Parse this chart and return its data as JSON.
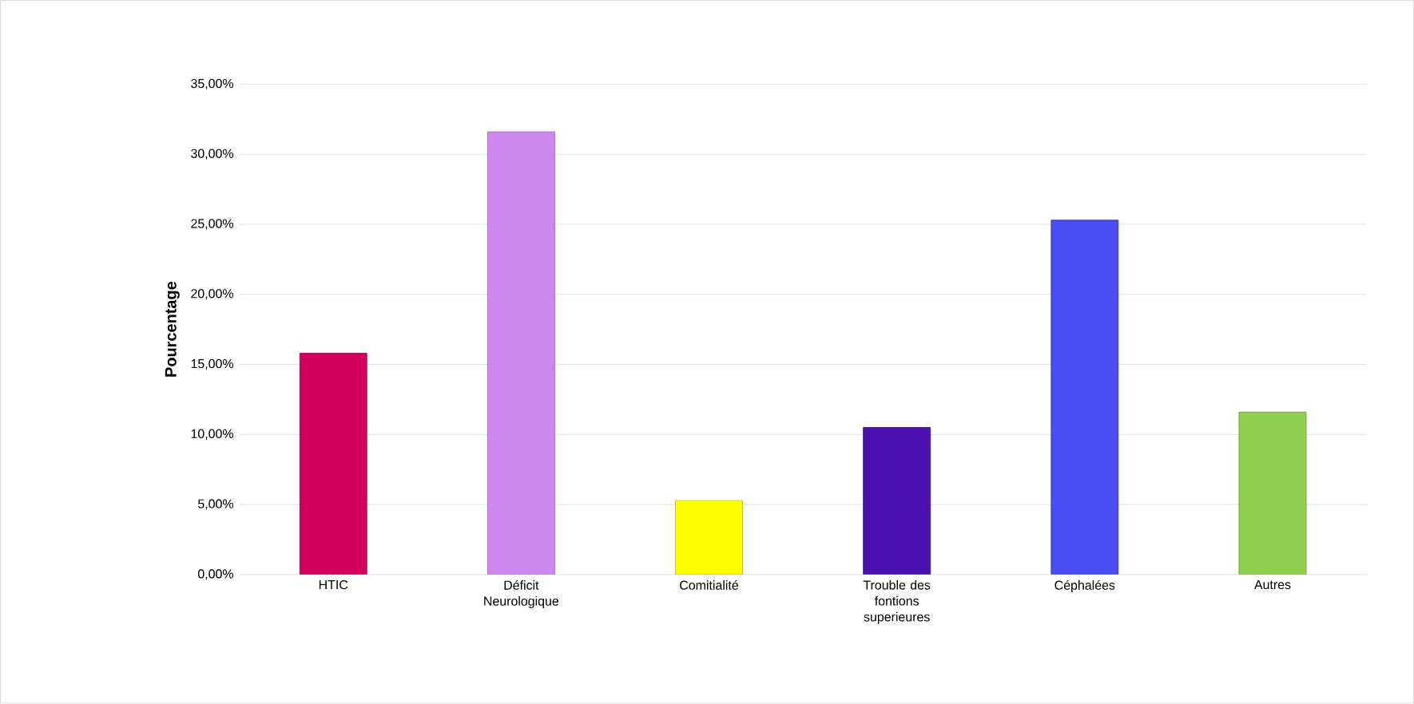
{
  "chart_data": {
    "type": "bar",
    "ylabel": "Pourcentage",
    "categories": [
      "HTIC",
      "Déficit Neurologique",
      "Comitialité",
      "Trouble des fontions superieures",
      "Céphalées",
      "Autres"
    ],
    "values": [
      15.8,
      31.6,
      5.3,
      10.5,
      25.3,
      11.6
    ],
    "colors": [
      "#d4005e",
      "#cc88ee",
      "#ffff00",
      "#4a10b0",
      "#4a4ef2",
      "#8fd14f"
    ],
    "ylim": [
      0,
      35
    ],
    "yticks": [
      {
        "value": 0,
        "label": "0,00%"
      },
      {
        "value": 5,
        "label": "5,00%"
      },
      {
        "value": 10,
        "label": "10,00%"
      },
      {
        "value": 15,
        "label": "15,00%"
      },
      {
        "value": 20,
        "label": "20,00%"
      },
      {
        "value": 25,
        "label": "25,00%"
      },
      {
        "value": 30,
        "label": "30,00%"
      },
      {
        "value": 35,
        "label": "35,00%"
      }
    ],
    "grid": "y"
  }
}
